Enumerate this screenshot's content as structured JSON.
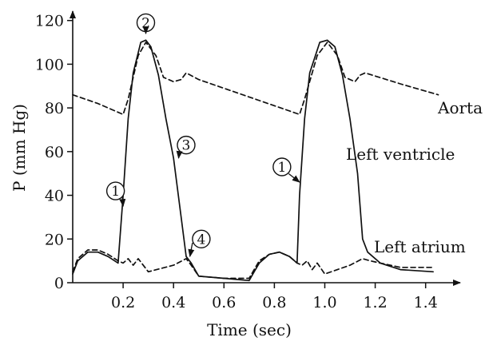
{
  "chart_data": {
    "type": "line",
    "xlabel": "Time (sec)",
    "ylabel": "P (mm Hg)",
    "xlim": [
      0,
      1.55
    ],
    "ylim": [
      0,
      125
    ],
    "x_ticks": [
      0.2,
      0.4,
      0.6,
      0.8,
      1.0,
      1.2,
      1.4
    ],
    "y_ticks": [
      0,
      20,
      40,
      60,
      80,
      100,
      120
    ],
    "x_tick_labels": [
      "0.2",
      "0.4",
      "0.6",
      "0.8",
      "1.0",
      "1.2",
      "1.4"
    ],
    "y_tick_labels": [
      "0",
      "20",
      "40",
      "60",
      "80",
      "100",
      "120"
    ],
    "grid": false,
    "series": [
      {
        "name": "Aorta",
        "style": "dashed",
        "x": [
          0,
          0.1,
          0.2,
          0.22,
          0.26,
          0.29,
          0.33,
          0.36,
          0.4,
          0.43,
          0.45,
          0.5,
          0.9,
          0.92,
          0.97,
          1.01,
          1.05,
          1.08,
          1.12,
          1.14,
          1.16,
          1.3,
          1.45
        ],
        "y": [
          86,
          82,
          77,
          84,
          104,
          110,
          104,
          94,
          92,
          93,
          96,
          93,
          77,
          84,
          104,
          110,
          104,
          94,
          92,
          95,
          96,
          91,
          86
        ]
      },
      {
        "name": "Left ventricle",
        "style": "solid",
        "x": [
          0,
          0.02,
          0.06,
          0.1,
          0.14,
          0.18,
          0.2,
          0.22,
          0.24,
          0.27,
          0.29,
          0.31,
          0.34,
          0.37,
          0.4,
          0.43,
          0.45,
          0.47,
          0.5,
          0.6,
          0.7,
          0.72,
          0.74,
          0.78,
          0.82,
          0.86,
          0.89,
          0.9,
          0.92,
          0.94,
          0.98,
          1.01,
          1.04,
          1.07,
          1.1,
          1.13,
          1.15,
          1.17,
          1.22,
          1.3,
          1.43
        ],
        "y": [
          4,
          10,
          14,
          14,
          12,
          9,
          40,
          75,
          96,
          110,
          111,
          108,
          95,
          75,
          57,
          30,
          12,
          9,
          3,
          2,
          1,
          5,
          9,
          13,
          14,
          12,
          9,
          40,
          75,
          96,
          110,
          111,
          108,
          95,
          75,
          50,
          20,
          14,
          9,
          6,
          5
        ]
      },
      {
        "name": "Left atrium",
        "style": "dashed",
        "x": [
          0,
          0.02,
          0.06,
          0.1,
          0.14,
          0.18,
          0.2,
          0.22,
          0.24,
          0.26,
          0.3,
          0.4,
          0.45,
          0.47,
          0.5,
          0.6,
          0.7,
          0.72,
          0.74,
          0.78,
          0.82,
          0.86,
          0.89,
          0.91,
          0.93,
          0.95,
          0.97,
          1.0,
          1.1,
          1.15,
          1.18,
          1.22,
          1.3,
          1.43
        ],
        "y": [
          5,
          11,
          15,
          15,
          13,
          10,
          9,
          11,
          8,
          11,
          5,
          8,
          11,
          8,
          3,
          2,
          2,
          6,
          10,
          13,
          14,
          12,
          9,
          8,
          10,
          6,
          9,
          4,
          8,
          11,
          10,
          9,
          7,
          7
        ]
      }
    ],
    "annotations": [
      {
        "text": "1",
        "x": 0.17,
        "y": 42,
        "shape": "circle",
        "arrow": "points-to-left-ventricle-upstroke"
      },
      {
        "text": "2",
        "x": 0.29,
        "y": 119,
        "shape": "circle",
        "arrow": "points-to-peak"
      },
      {
        "text": "3",
        "x": 0.45,
        "y": 63,
        "shape": "circle",
        "arrow": "points-to-left-ventricle-downstroke"
      },
      {
        "text": "4",
        "x": 0.51,
        "y": 20,
        "shape": "circle",
        "arrow": "points-to-crossing"
      },
      {
        "text": "1",
        "x": 0.83,
        "y": 53,
        "shape": "circle",
        "arrow": "points-to-left-ventricle-upstroke"
      }
    ],
    "series_labels": [
      "Aorta",
      "Left ventricle",
      "Left atrium"
    ]
  }
}
